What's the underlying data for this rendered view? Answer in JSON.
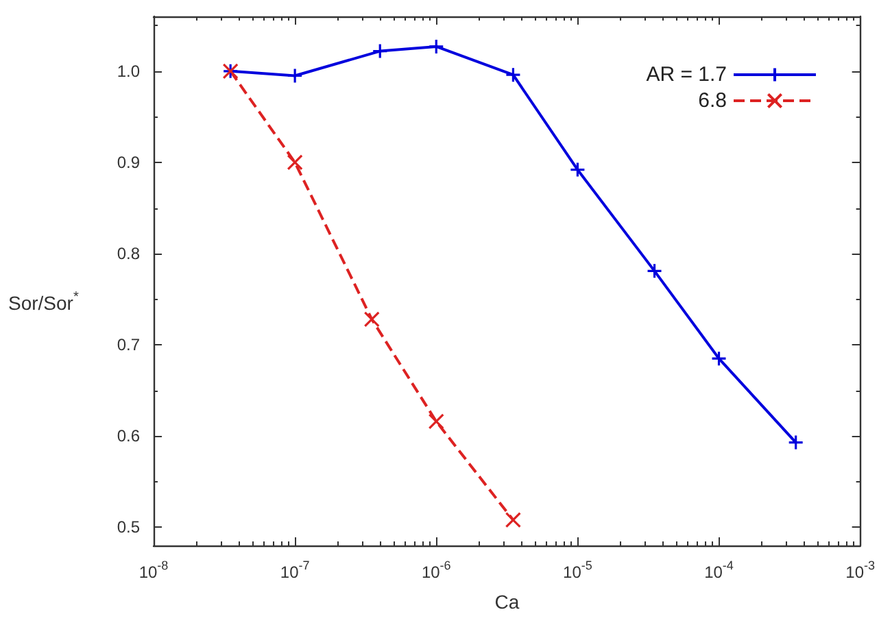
{
  "chart_data": {
    "type": "line",
    "xlabel": "Ca",
    "ylabel": "Sor/Sor$^{*}$",
    "log": "x",
    "xlim": [
      1e-08,
      0.001
    ],
    "xticks": [
      {
        "value": 1e-08,
        "label": "10$^{-8}$"
      },
      {
        "value": 1e-07,
        "label": "10$^{-7}$"
      },
      {
        "value": 1e-06,
        "label": "10$^{-6}$"
      },
      {
        "value": 1e-05,
        "label": "10$^{-5}$"
      },
      {
        "value": 0.0001,
        "label": "10$^{-4}$"
      },
      {
        "value": 0.001,
        "label": "10$^{-3}$"
      }
    ],
    "ylim": [
      0.48,
      1.06
    ],
    "yticks": [
      0.5,
      0.6,
      0.7,
      0.8,
      0.9,
      {
        "value": 1,
        "label": "1.0"
      }
    ],
    "grid": false,
    "legend": "top right",
    "series": [
      {
        "name": "AR = 1.7",
        "color": "#0000dd",
        "marker": "cross",
        "line_style": "solid",
        "x": [
          3.5e-08,
          1e-07,
          4e-07,
          1e-06,
          3.5e-06,
          1e-05,
          3.5e-05,
          0.0001,
          0.00035
        ],
        "values": [
          1.0,
          0.995,
          1.022,
          1.027,
          0.996,
          0.892,
          0.781,
          0.685,
          0.593
        ]
      },
      {
        "name": "6.8",
        "color": "#dd2222",
        "marker": "x",
        "line_style": "dashed",
        "x": [
          3.5e-08,
          1e-07,
          3.5e-07,
          1e-06,
          3.5e-06
        ],
        "values": [
          1.0,
          0.9,
          0.728,
          0.616,
          0.508
        ]
      }
    ]
  }
}
